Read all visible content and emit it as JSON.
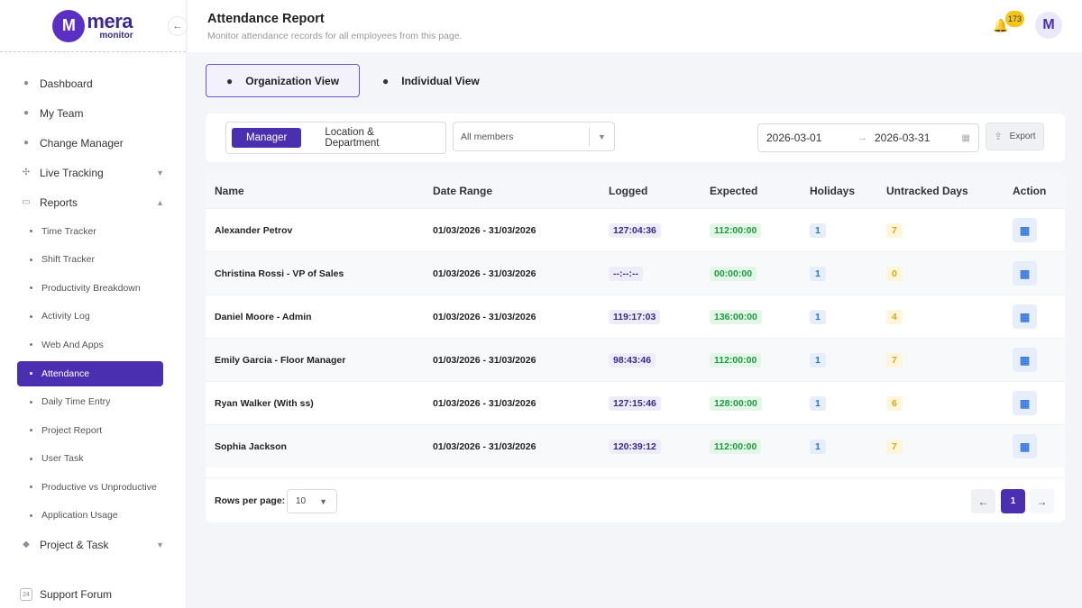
{
  "brand": {
    "name": "mera",
    "sub": "monitor",
    "mark": "M"
  },
  "sidebar": {
    "collapse_icon": "←",
    "items": [
      {
        "label": "Dashboard"
      },
      {
        "label": "My Team"
      },
      {
        "label": "Change Manager"
      },
      {
        "label": "Live Tracking"
      },
      {
        "label": "Reports"
      }
    ],
    "reports_sub": [
      {
        "label": "Time Tracker"
      },
      {
        "label": "Shift Tracker"
      },
      {
        "label": "Productivity Breakdown"
      },
      {
        "label": "Activity Log"
      },
      {
        "label": "Web And Apps"
      },
      {
        "label": "Attendance"
      },
      {
        "label": "Daily Time Entry"
      },
      {
        "label": "Project Report"
      },
      {
        "label": "User Task"
      },
      {
        "label": "Productive vs Unproductive"
      },
      {
        "label": "Application Usage"
      }
    ],
    "project_task": "Project & Task",
    "support": "Support Forum",
    "support_icon_text": "24"
  },
  "header": {
    "title": "Attendance Report",
    "subtitle": "Monitor attendance records for all employees from this page.",
    "notification_count": "173",
    "avatar_letter": "M"
  },
  "views": {
    "org": "Organization View",
    "individual": "Individual View"
  },
  "filters": {
    "segment": {
      "manager": "Manager",
      "location": "Location & Department"
    },
    "members_placeholder": "All members",
    "date_from": "2026-03-01",
    "date_to": "2026-03-31",
    "export": "Export"
  },
  "table": {
    "headers": {
      "name": "Name",
      "date_range": "Date Range",
      "logged": "Logged",
      "expected": "Expected",
      "holidays": "Holidays",
      "untracked": "Untracked Days",
      "action": "Action"
    },
    "rows": [
      {
        "name": "Alexander Petrov",
        "date": "01/03/2026 - 31/03/2026",
        "logged": "127:04:36",
        "expected": "112:00:00",
        "holidays": "1",
        "untracked": "7"
      },
      {
        "name": "Christina Rossi - VP of Sales",
        "date": "01/03/2026 - 31/03/2026",
        "logged": "--:--:--",
        "expected": "00:00:00",
        "holidays": "1",
        "untracked": "0"
      },
      {
        "name": "Daniel Moore - Admin",
        "date": "01/03/2026 - 31/03/2026",
        "logged": "119:17:03",
        "expected": "136:00:00",
        "holidays": "1",
        "untracked": "4"
      },
      {
        "name": "Emily Garcia - Floor Manager",
        "date": "01/03/2026 - 31/03/2026",
        "logged": "98:43:46",
        "expected": "112:00:00",
        "holidays": "1",
        "untracked": "7"
      },
      {
        "name": "Ryan Walker (With ss)",
        "date": "01/03/2026 - 31/03/2026",
        "logged": "127:15:46",
        "expected": "128:00:00",
        "holidays": "1",
        "untracked": "6"
      },
      {
        "name": "Sophia Jackson",
        "date": "01/03/2026 - 31/03/2026",
        "logged": "120:39:12",
        "expected": "112:00:00",
        "holidays": "1",
        "untracked": "7"
      }
    ],
    "rows_per_page_label": "Rows per page:",
    "rows_per_page": "10",
    "current_page": "1"
  },
  "colors": {
    "accent": "#4a2fb0",
    "expected": "#1e9b3e",
    "holidays": "#2a6fd6",
    "untracked": "#d9a70b"
  }
}
